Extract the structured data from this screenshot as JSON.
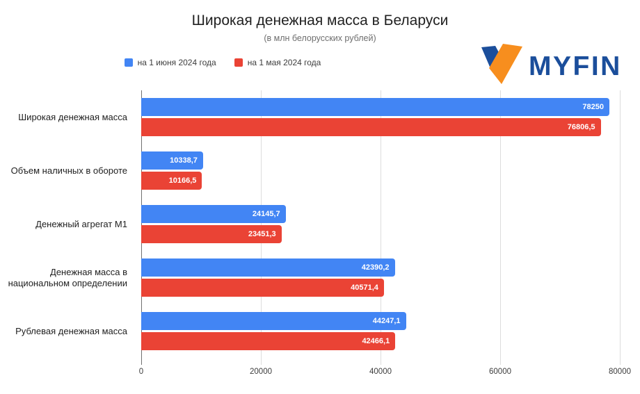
{
  "title": "Широкая денежная масса в Беларуси",
  "subtitle": "(в млн белорусских рублей)",
  "logo": {
    "text": "MYFIN",
    "navy": "#1B4E9B",
    "orange": "#F78E1E"
  },
  "legend": [
    {
      "label": "на 1 июня 2024 года",
      "color": "#4285F4"
    },
    {
      "label": "на 1 мая 2024 года",
      "color": "#EA4335"
    }
  ],
  "chart_data": {
    "type": "bar",
    "orientation": "horizontal",
    "title": "Широкая денежная масса в Беларуси",
    "subtitle": "(в млн белорусских рублей)",
    "categories": [
      "Широкая денежная масса",
      "Объем наличных в обороте",
      "Денежный агрегат M1",
      "Денежная масса в национальном определении",
      "Рублевая денежная масса"
    ],
    "series": [
      {
        "name": "на 1 июня 2024 года",
        "color": "#4285F4",
        "values": [
          78250,
          10338.7,
          24145.7,
          42390.2,
          44247.1
        ],
        "labels": [
          "78250",
          "10338,7",
          "24145,7",
          "42390,2",
          "44247,1"
        ]
      },
      {
        "name": "на 1 мая 2024 года",
        "color": "#EA4335",
        "values": [
          76806.5,
          10166.5,
          23451.3,
          40571.4,
          42466.1
        ],
        "labels": [
          "76806,5",
          "10166,5",
          "23451,3",
          "40571,4",
          "42466,1"
        ]
      }
    ],
    "xlim": [
      0,
      80000
    ],
    "x_ticks": [
      0,
      20000,
      40000,
      60000,
      80000
    ],
    "x_tick_labels": [
      "0",
      "20000",
      "40000",
      "60000",
      "80000"
    ],
    "grid": true,
    "legend_position": "top",
    "value_labels": "inside-end"
  }
}
